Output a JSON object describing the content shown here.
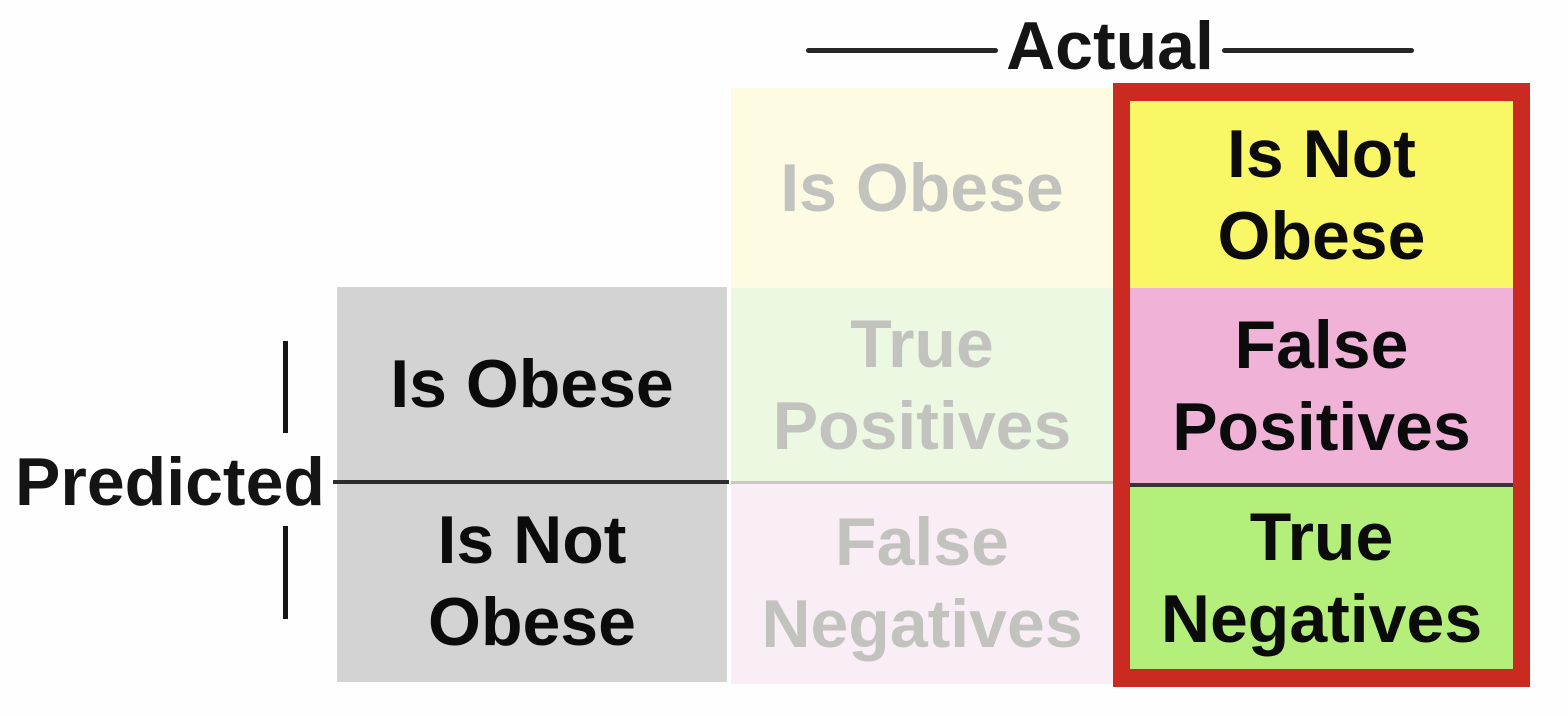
{
  "axes": {
    "top_label": "Actual",
    "left_label": "Predicted"
  },
  "predicted_column": {
    "row1": "Is Obese",
    "row2": "Is Not\nObese"
  },
  "actual_obese_column": {
    "header": "Is Obese",
    "cell_true_positives": "True\nPositives",
    "cell_false_negatives": "False\nNegatives",
    "state": "faded"
  },
  "actual_not_obese_column": {
    "header": "Is Not\nObese",
    "cell_false_positives": "False\nPositives",
    "cell_true_negatives": "True\nNegatives",
    "state": "highlighted"
  },
  "colors": {
    "predicted_cell_gray": "#d3d3d3",
    "highlight_border_red": "#cb2a20",
    "yellow": "#f9f766",
    "pink": "#f0b3d7",
    "green": "#b5ef7b",
    "faded_yellow": "#fdfce3",
    "faded_green": "#ecf8e1",
    "faded_pink": "#f9eef5",
    "faded_text_gray": "#c2c2bf",
    "line_black": "#2c2c2c"
  }
}
